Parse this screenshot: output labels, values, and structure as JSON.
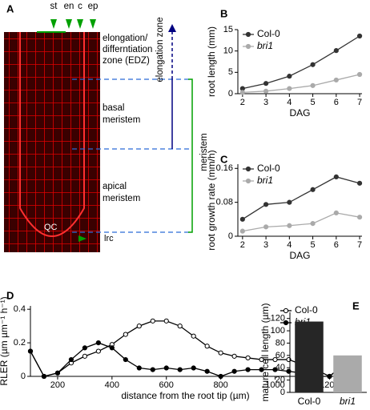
{
  "image_panel": {
    "label": "A",
    "layers": [
      "st",
      "en",
      "c",
      "ep"
    ],
    "zones": [
      "elongation/",
      "differntiation",
      "zone (EDZ)",
      "basal",
      "meristem",
      "apical",
      "meristem"
    ],
    "qc": "QC",
    "lrc": "lrc",
    "elongation_zone": "elongation zone",
    "meristem": "meristem"
  },
  "chart_data": [
    {
      "type": "line",
      "label": "B",
      "xlabel": "DAG",
      "ylabel": "root length (mm)",
      "x": [
        2,
        3,
        4,
        5,
        6,
        7
      ],
      "xlim": [
        1.8,
        7.1
      ],
      "xticks": [
        2,
        3,
        4,
        5,
        6,
        7
      ],
      "ylim": [
        0,
        15
      ],
      "yticks": [
        0,
        5,
        10,
        15
      ],
      "legend": "upper left",
      "series": [
        {
          "name": "Col-0",
          "color": "#333333",
          "marker": "filled",
          "font_style": "normal",
          "values": [
            1.2,
            2.4,
            4.1,
            6.8,
            10.1,
            13.5
          ]
        },
        {
          "name": "bri1",
          "color": "#aaaaaa",
          "marker": "filled",
          "font_style": "italic",
          "values": [
            0.3,
            0.6,
            1.2,
            1.9,
            3.2,
            4.5
          ]
        }
      ]
    },
    {
      "type": "line",
      "label": "C",
      "xlabel": "DAG",
      "ylabel": "root growth rate (mm/h)",
      "x": [
        2,
        3,
        4,
        5,
        6,
        7
      ],
      "xlim": [
        1.8,
        7.1
      ],
      "xticks": [
        2,
        3,
        4,
        5,
        6,
        7
      ],
      "ylim": [
        0,
        0.17
      ],
      "yticks": [
        0,
        0.08,
        0.16
      ],
      "legend": "upper left",
      "series": [
        {
          "name": "Col-0",
          "color": "#333333",
          "marker": "filled",
          "font_style": "normal",
          "values": [
            0.04,
            0.075,
            0.08,
            0.11,
            0.14,
            0.125
          ]
        },
        {
          "name": "bri1",
          "color": "#aaaaaa",
          "marker": "filled",
          "font_style": "italic",
          "values": [
            0.012,
            0.022,
            0.025,
            0.03,
            0.055,
            0.045
          ]
        }
      ]
    },
    {
      "type": "line",
      "label": "D",
      "xlabel": "distance from the root tip (µm)",
      "ylabel": "RLER (µm µm⁻¹ h⁻¹)",
      "x": [
        100,
        150,
        200,
        250,
        300,
        350,
        400,
        450,
        500,
        550,
        600,
        650,
        700,
        750,
        800,
        850,
        900,
        950,
        1000,
        1050,
        1100,
        1150,
        1200,
        1230
      ],
      "xlim": [
        100,
        1240
      ],
      "xticks": [
        200,
        400,
        600,
        800,
        1000,
        1200
      ],
      "ylim": [
        0,
        0.42
      ],
      "yticks": [
        0,
        0.2,
        0.4
      ],
      "legend": "upper right",
      "series": [
        {
          "name": "Col-0",
          "color": "#000000",
          "marker": "open",
          "font_style": "normal",
          "values": [
            0.15,
            0.0,
            0.02,
            0.08,
            0.12,
            0.15,
            0.19,
            0.25,
            0.3,
            0.33,
            0.33,
            0.3,
            0.24,
            0.18,
            0.14,
            0.12,
            0.11,
            0.1,
            0.1,
            0.1,
            0.07,
            0.04,
            0.0,
            0.04
          ]
        },
        {
          "name": "bri1",
          "color": "#000000",
          "marker": "filled",
          "font_style": "italic",
          "values": [
            0.15,
            0.0,
            0.02,
            0.1,
            0.17,
            0.2,
            0.17,
            0.1,
            0.05,
            0.04,
            0.05,
            0.04,
            0.05,
            0.03,
            0.0,
            0.03,
            0.04,
            0.04,
            0.04,
            0.03,
            0.02,
            0.0,
            0.0,
            0.04
          ]
        }
      ]
    },
    {
      "type": "bar",
      "label": "E",
      "ylabel": "mature cell length (µm)",
      "categories": [
        "Col-0",
        "bri1"
      ],
      "values": [
        115,
        60
      ],
      "colors": [
        "#262626",
        "#aaaaaa"
      ],
      "category_styles": [
        "normal",
        "italic"
      ],
      "ylim": [
        0,
        130
      ],
      "yticks": [
        0,
        20,
        40,
        60,
        80,
        100,
        120
      ]
    }
  ]
}
